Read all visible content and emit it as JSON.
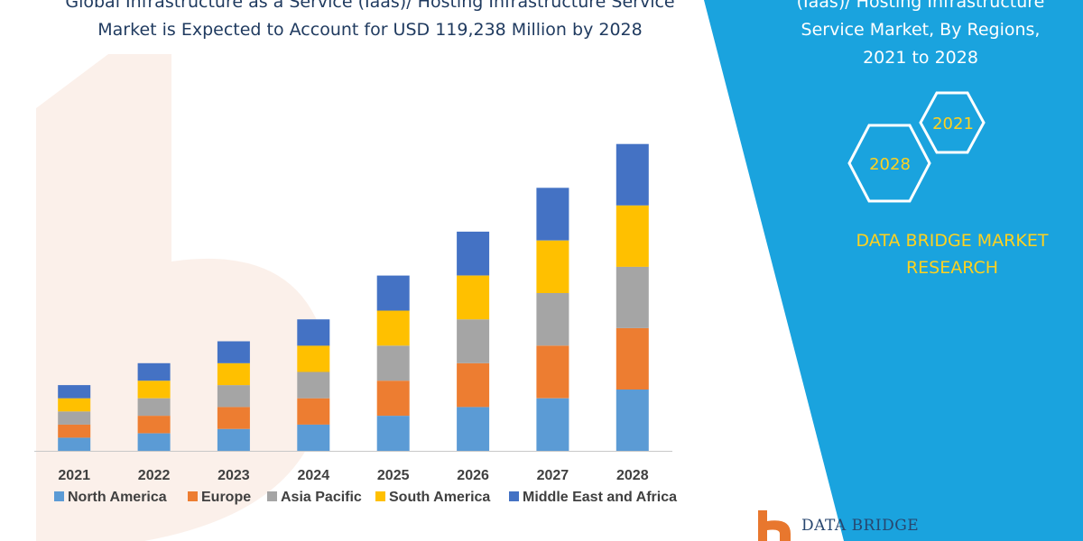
{
  "title_lines": [
    "Global Infrastructure as a Service (Iaas)/ Hosting Infrastructure Service",
    "Market is Expected to Account for USD 119,238 Million by 2028"
  ],
  "side_panel": {
    "title_lines": [
      "(Iaas)/ Hosting Infrastructure",
      "Service Market, By Regions,",
      "2021 to 2028"
    ],
    "hex_years": [
      "2021",
      "2028"
    ],
    "brand_lines": [
      "DATA BRIDGE MARKET",
      "RESEARCH"
    ],
    "background_color": "#1aa3de",
    "accent_color": "#ffd21f"
  },
  "logo": {
    "text": "DATA BRIDGE"
  },
  "chart_data": {
    "type": "bar",
    "stacked": true,
    "categories": [
      "2021",
      "2022",
      "2023",
      "2024",
      "2025",
      "2026",
      "2027",
      "2028"
    ],
    "series": [
      {
        "name": "North America",
        "color": "#5b9bd5",
        "values": [
          15,
          20,
          25,
          30,
          40,
          50,
          60,
          70
        ]
      },
      {
        "name": "Europe",
        "color": "#ed7d31",
        "values": [
          15,
          20,
          25,
          30,
          40,
          50,
          60,
          70
        ]
      },
      {
        "name": "Asia Pacific",
        "color": "#a5a5a5",
        "values": [
          15,
          20,
          25,
          30,
          40,
          50,
          60,
          70
        ]
      },
      {
        "name": "South America",
        "color": "#ffc000",
        "values": [
          15,
          20,
          25,
          30,
          40,
          50,
          60,
          70
        ]
      },
      {
        "name": "Middle East and Africa",
        "color": "#4472c4",
        "values": [
          15,
          20,
          25,
          30,
          40,
          50,
          60,
          70
        ]
      }
    ],
    "ylim": [
      0,
      360
    ],
    "grid": false,
    "legend_position": "bottom"
  }
}
